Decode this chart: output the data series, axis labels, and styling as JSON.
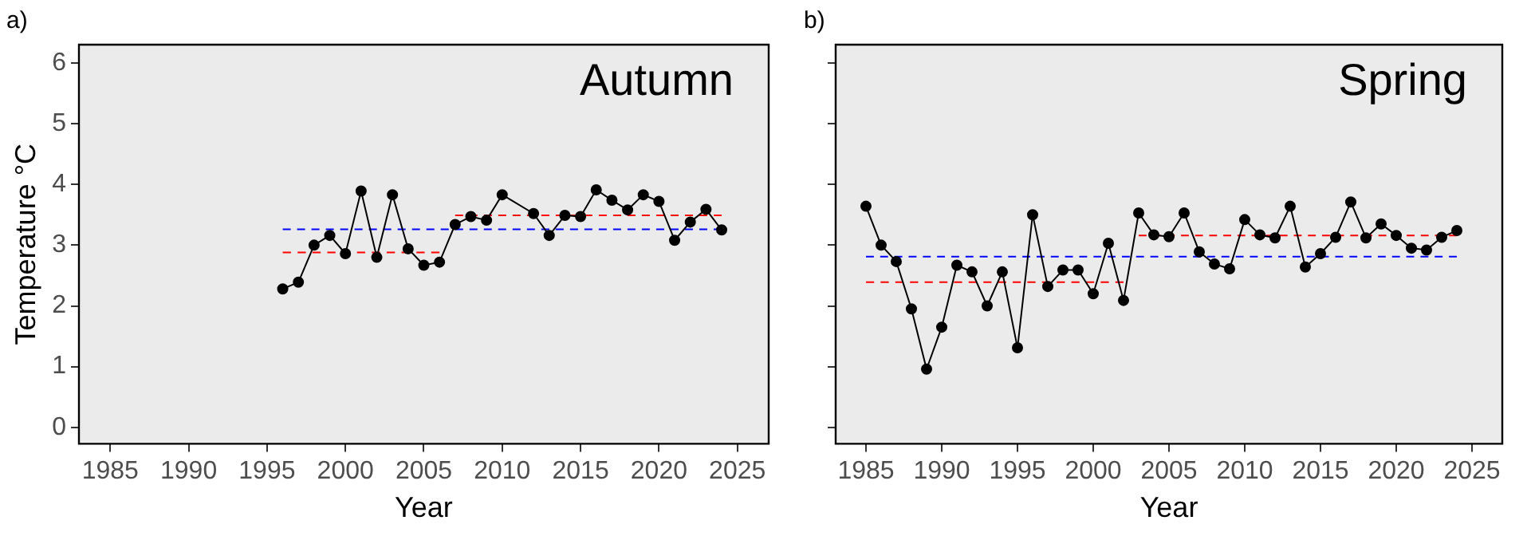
{
  "chart_data": [
    {
      "type": "line",
      "title": "Autumn",
      "xlabel": "Year",
      "ylabel": "Temperature °C",
      "annotations": [
        "a)"
      ],
      "xlim": [
        1983,
        2027
      ],
      "xticks": [
        1985,
        1990,
        1995,
        2000,
        2005,
        2010,
        2015,
        2020,
        2025
      ],
      "ylim": [
        -0.27,
        6.3
      ],
      "yticks": [
        0,
        1,
        2,
        3,
        4,
        5,
        6
      ],
      "grid": false,
      "legend": false,
      "series": [
        {
          "color": "#000000",
          "marker": "circle",
          "line_style": "solid",
          "x": [
            1996,
            1997,
            1998,
            1999,
            2000,
            2001,
            2002,
            2003,
            2004,
            2005,
            2006,
            2007,
            2008,
            2009,
            2010,
            2012,
            2013,
            2014,
            2015,
            2016,
            2017,
            2018,
            2019,
            2020,
            2021,
            2022,
            2023,
            2024
          ],
          "values": [
            2.28,
            2.39,
            3.0,
            3.16,
            2.86,
            3.89,
            2.8,
            3.83,
            2.94,
            2.67,
            2.72,
            3.34,
            3.47,
            3.41,
            3.83,
            3.52,
            3.16,
            3.49,
            3.47,
            3.91,
            3.74,
            3.58,
            3.83,
            3.72,
            3.08,
            3.38,
            3.59,
            3.25
          ]
        },
        {
          "color": "#0000ff",
          "marker": "none",
          "line_style": "dashed",
          "x": [
            1996,
            2024
          ],
          "values": [
            3.26,
            3.26
          ]
        },
        {
          "color": "#ff0000",
          "marker": "none",
          "line_style": "dashed",
          "x": [
            1996,
            2006
          ],
          "values": [
            2.88,
            2.88
          ]
        },
        {
          "color": "#ff0000",
          "marker": "none",
          "line_style": "dashed",
          "x": [
            2007,
            2024
          ],
          "values": [
            3.49,
            3.49
          ]
        }
      ]
    },
    {
      "type": "line",
      "title": "Spring",
      "xlabel": "Year",
      "annotations": [
        "b)"
      ],
      "xlim": [
        1983,
        2027
      ],
      "xticks": [
        1985,
        1990,
        1995,
        2000,
        2005,
        2010,
        2015,
        2020,
        2025
      ],
      "ylim": [
        -0.27,
        6.3
      ],
      "yticks": [
        0,
        1,
        2,
        3,
        4,
        5,
        6
      ],
      "tick_labels": "x",
      "grid": false,
      "legend": false,
      "series": [
        {
          "color": "#000000",
          "marker": "circle",
          "line_style": "solid",
          "x": [
            1985,
            1986,
            1987,
            1988,
            1989,
            1990,
            1991,
            1992,
            1993,
            1994,
            1995,
            1996,
            1997,
            1998,
            1999,
            2000,
            2001,
            2002,
            2003,
            2004,
            2005,
            2006,
            2007,
            2008,
            2009,
            2010,
            2011,
            2012,
            2013,
            2014,
            2015,
            2016,
            2017,
            2018,
            2019,
            2020,
            2021,
            2022,
            2023,
            2024
          ],
          "values": [
            3.64,
            3.0,
            2.73,
            1.95,
            0.96,
            1.65,
            2.67,
            2.56,
            2.0,
            2.56,
            1.31,
            3.5,
            2.32,
            2.59,
            2.59,
            2.2,
            3.03,
            2.09,
            3.53,
            3.17,
            3.14,
            3.53,
            2.89,
            2.69,
            2.61,
            3.42,
            3.17,
            3.12,
            3.64,
            2.64,
            2.86,
            3.13,
            3.71,
            3.12,
            3.35,
            3.16,
            2.95,
            2.92,
            3.13,
            3.24
          ]
        },
        {
          "color": "#0000ff",
          "marker": "none",
          "line_style": "dashed",
          "x": [
            1985,
            2024
          ],
          "values": [
            2.81,
            2.81
          ]
        },
        {
          "color": "#ff0000",
          "marker": "none",
          "line_style": "dashed",
          "x": [
            1985,
            2002
          ],
          "values": [
            2.39,
            2.39
          ]
        },
        {
          "color": "#ff0000",
          "marker": "none",
          "line_style": "dashed",
          "x": [
            2003,
            2024
          ],
          "values": [
            3.16,
            3.16
          ]
        }
      ]
    }
  ]
}
